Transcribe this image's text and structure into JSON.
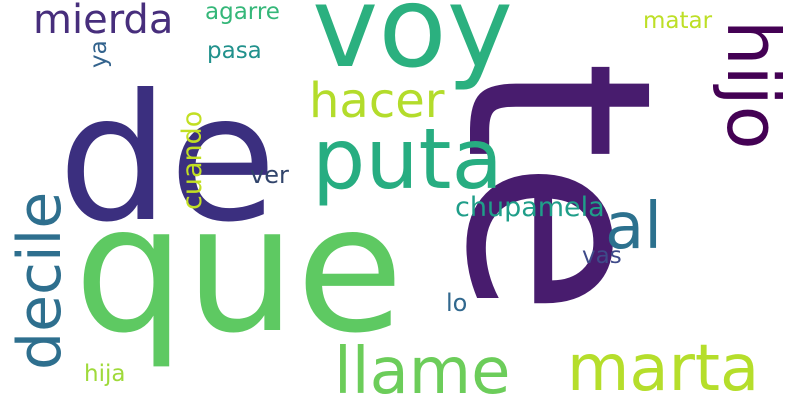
{
  "words": [
    {
      "text": "te",
      "color": "#481c6e"
    },
    {
      "text": "que",
      "color": "#5ec962"
    },
    {
      "text": "de",
      "color": "#3b2f7f"
    },
    {
      "text": "voy",
      "color": "#2bb07f"
    },
    {
      "text": "puta",
      "color": "#27ad81"
    },
    {
      "text": "hijo",
      "color": "#440154"
    },
    {
      "text": "marta",
      "color": "#b5de2b"
    },
    {
      "text": "llame",
      "color": "#6ccd5a"
    },
    {
      "text": "decile",
      "color": "#2e6f8e"
    },
    {
      "text": "al",
      "color": "#2c718e"
    },
    {
      "text": "hacer",
      "color": "#b3dc2b"
    },
    {
      "text": "mierda",
      "color": "#472e7c"
    },
    {
      "text": "chupamela",
      "color": "#1f9e89"
    },
    {
      "text": "cuando",
      "color": "#c2df23"
    },
    {
      "text": "agarre",
      "color": "#35b779"
    },
    {
      "text": "matar",
      "color": "#bddf26"
    },
    {
      "text": "pasa",
      "color": "#21918c"
    },
    {
      "text": "ver",
      "color": "#31446b"
    },
    {
      "text": "vas",
      "color": "#3e4a89"
    },
    {
      "text": "lo",
      "color": "#31688e"
    },
    {
      "text": "hija",
      "color": "#9fda3a"
    },
    {
      "text": "ya",
      "color": "#33638d"
    }
  ]
}
